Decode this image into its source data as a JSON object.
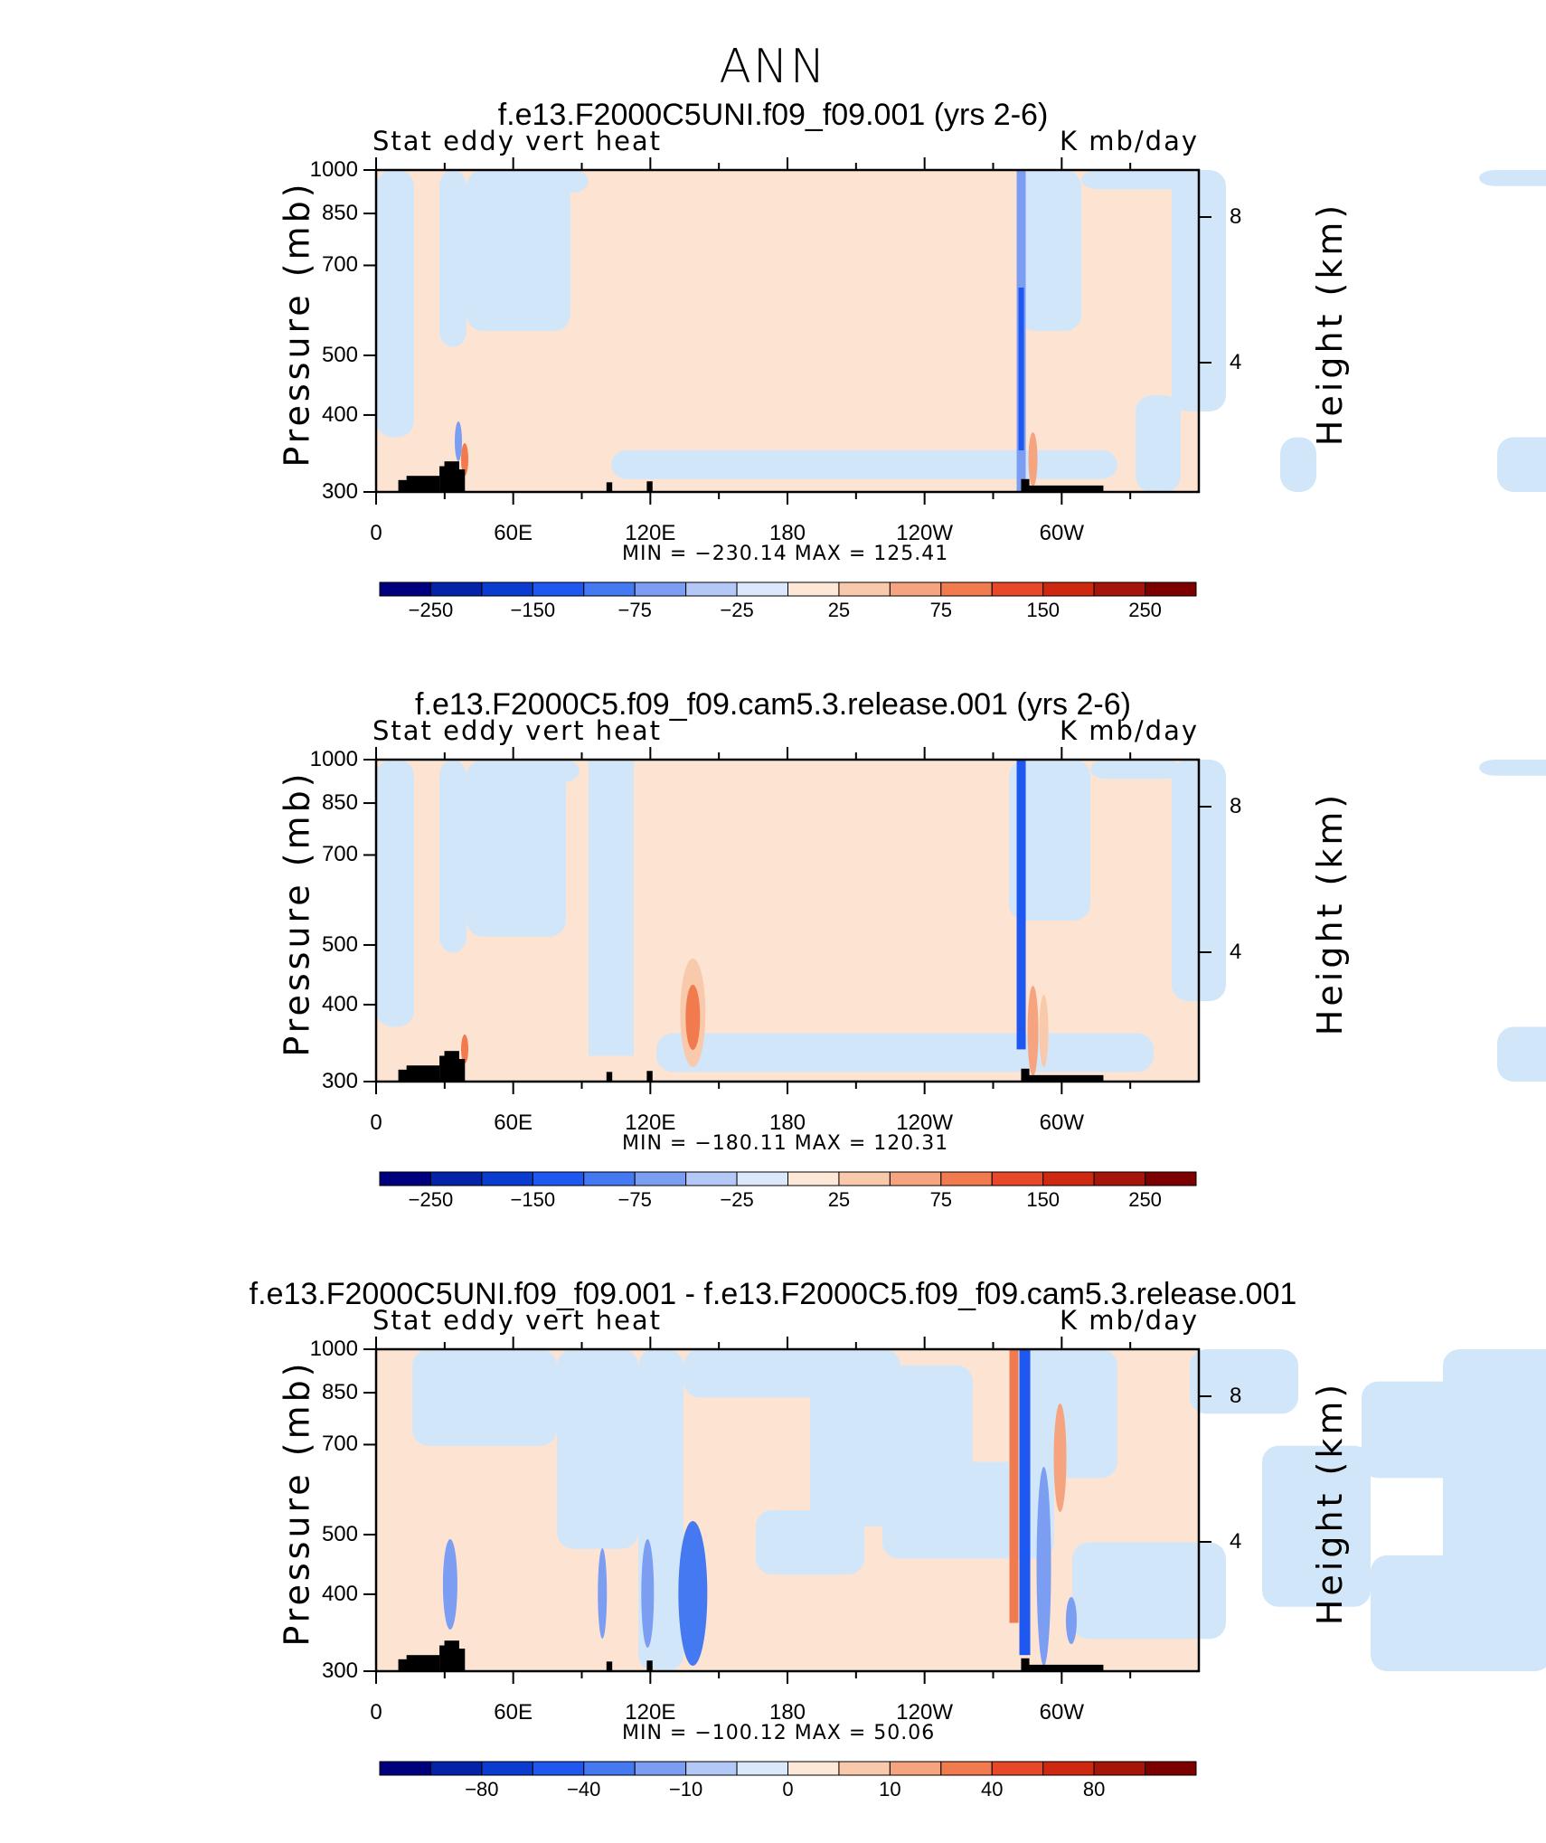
{
  "page_title": "ANN",
  "chart_data": [
    {
      "type": "heatmap",
      "title": "f.e13.F2000C5UNI.f09_f09.001 (yrs 2-6)",
      "left_label": "Stat eddy vert heat",
      "right_label": "K mb/day",
      "ylabel": "Pressure (mb)",
      "y2label": "Height (km)",
      "yticks": [
        "300",
        "400",
        "500",
        "700",
        "850",
        "1000"
      ],
      "y2ticks": [
        "8",
        "4"
      ],
      "xticks": [
        "0",
        "60E",
        "120E",
        "180",
        "120W",
        "60W"
      ],
      "stats": "MIN = −230.14   MAX = 125.41",
      "colorbar_labels": [
        "−250",
        "−150",
        "−75",
        "−25",
        "25",
        "75",
        "150",
        "250"
      ]
    },
    {
      "type": "heatmap",
      "title": "f.e13.F2000C5.f09_f09.cam5.3.release.001 (yrs 2-6)",
      "left_label": "Stat eddy vert heat",
      "right_label": "K mb/day",
      "ylabel": "Pressure (mb)",
      "y2label": "Height (km)",
      "yticks": [
        "300",
        "400",
        "500",
        "700",
        "850",
        "1000"
      ],
      "y2ticks": [
        "8",
        "4"
      ],
      "xticks": [
        "0",
        "60E",
        "120E",
        "180",
        "120W",
        "60W"
      ],
      "stats": "MIN = −180.11   MAX = 120.31",
      "colorbar_labels": [
        "−250",
        "−150",
        "−75",
        "−25",
        "25",
        "75",
        "150",
        "250"
      ]
    },
    {
      "type": "heatmap",
      "title": "f.e13.F2000C5UNI.f09_f09.001 - f.e13.F2000C5.f09_f09.cam5.3.release.001",
      "left_label": "Stat eddy vert heat",
      "right_label": "K mb/day",
      "ylabel": "Pressure (mb)",
      "y2label": "Height (km)",
      "yticks": [
        "300",
        "400",
        "500",
        "700",
        "850",
        "1000"
      ],
      "y2ticks": [
        "8",
        "4"
      ],
      "xticks": [
        "0",
        "60E",
        "120E",
        "180",
        "120W",
        "60W"
      ],
      "stats": "MIN = −100.12   MAX =   50.06",
      "colorbar_labels": [
        "−80",
        "−40",
        "−10",
        "0",
        "10",
        "40",
        "80"
      ]
    }
  ],
  "colors": {
    "pale_blue": "#d2e6fa",
    "pale_orange": "#fde4d2",
    "colorbar": [
      "#00007f",
      "#0523a8",
      "#0a3ccf",
      "#1f58f0",
      "#4479f2",
      "#7c9ef2",
      "#b3c8f6",
      "#dbe8fb",
      "#fde7d6",
      "#f9c9ab",
      "#f6a47f",
      "#f17a4f",
      "#e8472a",
      "#cf2810",
      "#a5150a",
      "#7d0000"
    ]
  }
}
